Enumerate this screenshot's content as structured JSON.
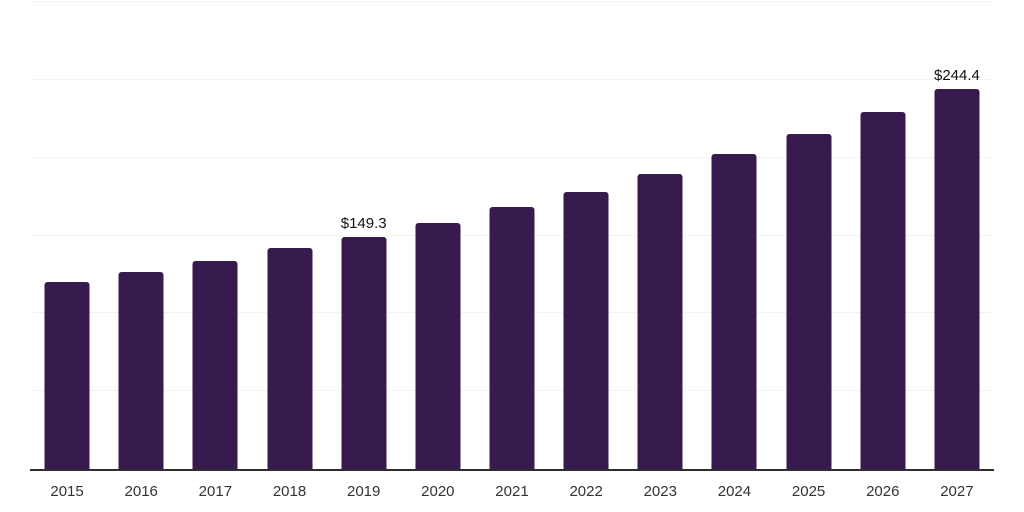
{
  "chart_data": {
    "type": "bar",
    "title": "",
    "xlabel": "",
    "ylabel": "",
    "categories": [
      "2015",
      "2016",
      "2017",
      "2018",
      "2019",
      "2020",
      "2021",
      "2022",
      "2023",
      "2024",
      "2025",
      "2026",
      "2027"
    ],
    "values": [
      120.2,
      126.7,
      133.5,
      142.0,
      149.3,
      158.2,
      168.1,
      178.1,
      189.6,
      202.1,
      215.4,
      229.5,
      244.4
    ],
    "bar_labels": [
      "",
      "",
      "",
      "",
      "$149.3",
      "",
      "",
      "",
      "",
      "",
      "",
      "",
      "$244.4"
    ],
    "ylim": [
      0,
      300
    ],
    "gridline_step": 50,
    "grid": true,
    "legend": "none",
    "colors": {
      "bar": "#371A4E",
      "gridline": "#F2F2F2",
      "axis_line": "#2E2E2E",
      "tick_label": "#333333",
      "value_label": "#111111",
      "background": "#FFFFFF"
    }
  }
}
